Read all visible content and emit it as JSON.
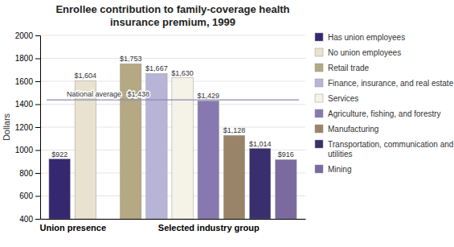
{
  "chart_data": {
    "type": "bar",
    "title": "Enrollee contribution to family-coverage health\ninsurance premium, 1999",
    "y_label": "Dollars",
    "categories": [
      "Union presence",
      "Selected industry group"
    ],
    "series": [
      {
        "name": "Has union employees",
        "color": "#352870",
        "values": [
          922,
          null
        ],
        "value_labels": [
          "$922",
          null
        ]
      },
      {
        "name": "No union employees",
        "color": "#e8e2ce",
        "values": [
          1604,
          null
        ],
        "value_labels": [
          "$1,604",
          null
        ]
      },
      {
        "name": "Retail trade",
        "color": "#b5a882",
        "values": [
          null,
          1753
        ],
        "value_labels": [
          null,
          "$1,753"
        ]
      },
      {
        "name": "Finance, insurance, and real estate",
        "color": "#b8b4d8",
        "values": [
          null,
          1667
        ],
        "value_labels": [
          null,
          "$1,667"
        ]
      },
      {
        "name": "Services",
        "color": "#f5f3e8",
        "values": [
          null,
          1630
        ],
        "value_labels": [
          null,
          "$1,630"
        ]
      },
      {
        "name": "Agriculture, fishing, and forestry",
        "color": "#8878b0",
        "values": [
          null,
          1429
        ],
        "value_labels": [
          null,
          "$1,429"
        ]
      },
      {
        "name": "Manufacturing",
        "color": "#9a8468",
        "values": [
          null,
          1128
        ],
        "value_labels": [
          null,
          "$1,128"
        ]
      },
      {
        "name": "Transportation, communication and utilities",
        "color": "#3a2f6e",
        "values": [
          null,
          1014
        ],
        "value_labels": [
          null,
          "$1,014"
        ]
      },
      {
        "name": "Mining",
        "color": "#7a6aa0",
        "values": [
          null,
          916
        ],
        "value_labels": [
          null,
          "$916"
        ]
      }
    ],
    "ylim": [
      400,
      2000
    ],
    "yticks": [
      400,
      600,
      800,
      1000,
      1200,
      1400,
      1600,
      1800,
      2000
    ],
    "grid": true,
    "legend": "right",
    "data_labels": true,
    "reference_line": {
      "value": 1438,
      "label": "National average   $1,438"
    }
  }
}
